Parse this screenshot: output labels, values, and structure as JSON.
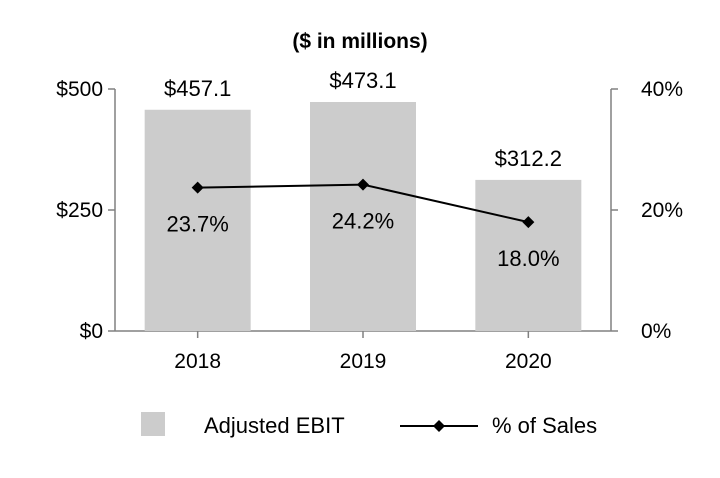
{
  "chart_data": {
    "type": "bar",
    "title": "($ in millions)",
    "categories": [
      "2018",
      "2019",
      "2020"
    ],
    "series": [
      {
        "name": "Adjusted EBIT",
        "kind": "bar",
        "axis": "left",
        "values": [
          457.1,
          473.1,
          312.2
        ],
        "labels": [
          "$457.1",
          "$473.1",
          "$312.2"
        ],
        "color": "#cccccc"
      },
      {
        "name": "% of Sales",
        "kind": "line",
        "axis": "right",
        "values": [
          23.7,
          24.2,
          18.0
        ],
        "labels": [
          "23.7%",
          "24.2%",
          "18.0%"
        ],
        "color": "#000000"
      }
    ],
    "y_left": {
      "ylim": [
        0,
        500
      ],
      "ticks": [
        0,
        250,
        500
      ],
      "tick_labels": [
        "$0",
        "$250",
        "$500"
      ]
    },
    "y_right": {
      "ylim": [
        0,
        40
      ],
      "ticks": [
        0,
        20,
        40
      ],
      "tick_labels": [
        "0%",
        "20%",
        "40%"
      ]
    },
    "legend": {
      "position": "bottom-center",
      "entries": [
        "Adjusted EBIT",
        "% of Sales"
      ]
    },
    "grid": false,
    "axis_color": "#808080"
  }
}
